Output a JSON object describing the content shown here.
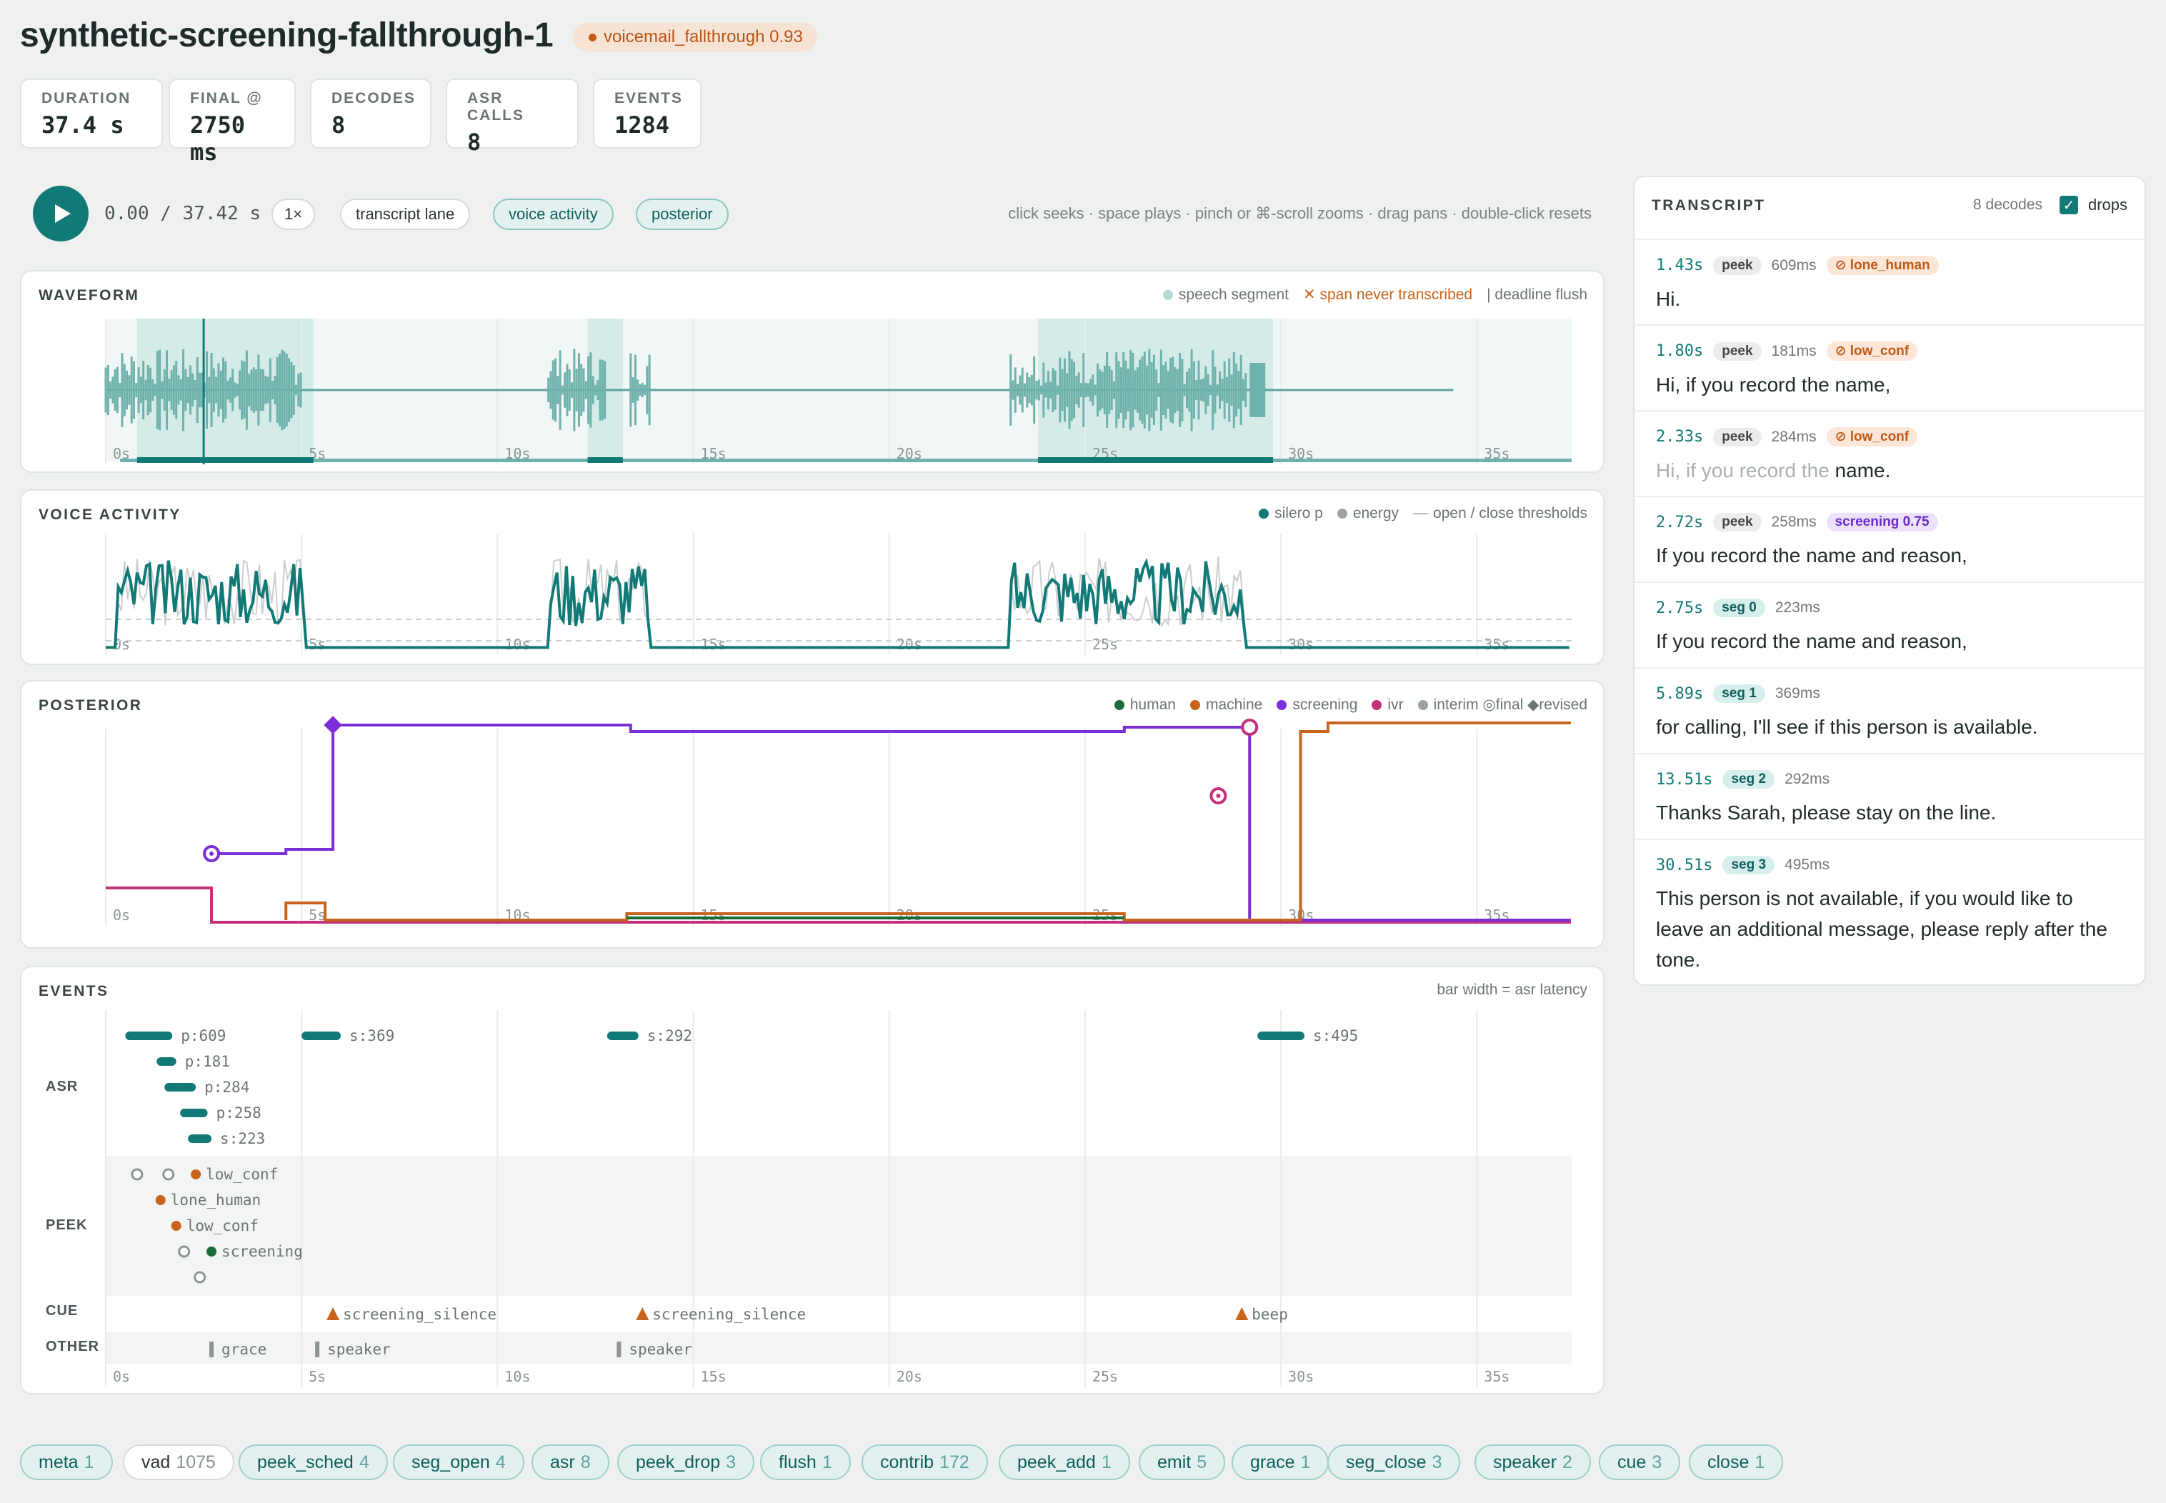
{
  "header": {
    "title": "synthetic-screening-fallthrough-1",
    "verdict": "voicemail_fallthrough 0.93"
  },
  "stats": [
    {
      "label": "DURATION",
      "value": "37.4 s"
    },
    {
      "label": "FINAL @",
      "value": "2750 ms"
    },
    {
      "label": "DECODES",
      "value": "8"
    },
    {
      "label": "ASR CALLS",
      "value": "8"
    },
    {
      "label": "EVENTS",
      "value": "1284"
    }
  ],
  "player": {
    "time": "0.00 / 37.42 s",
    "speed": "1×",
    "toggles": [
      "transcript lane",
      "voice activity",
      "posterior"
    ],
    "hint": "click seeks · space plays · pinch or ⌘-scroll zooms · drag pans · double-click resets"
  },
  "waveform": {
    "title": "WAVEFORM",
    "legend": {
      "speech": "speech segment",
      "never": "span never transcribed",
      "flush": "| deadline flush"
    }
  },
  "vad": {
    "title": "VOICE ACTIVITY",
    "legend": {
      "silero": "silero p",
      "energy": "energy",
      "thresholds": "open / close thresholds"
    }
  },
  "posterior": {
    "title": "POSTERIOR",
    "legend": {
      "human": "human",
      "machine": "machine",
      "screening": "screening",
      "ivr": "ivr",
      "interim": "interim",
      "final": "final",
      "revised": "revised"
    }
  },
  "events": {
    "title": "EVENTS",
    "legend": "bar width = asr latency",
    "lanes": {
      "asr": "ASR",
      "peek": "PEEK",
      "cue": "CUE",
      "other": "OTHER"
    },
    "asr": [
      {
        "t": 0.5,
        "w": 1.2,
        "label": "p:609",
        "row": 0
      },
      {
        "t": 5,
        "w": 1.0,
        "label": "s:369",
        "row": 0
      },
      {
        "t": 12.8,
        "w": 0.8,
        "label": "s:292",
        "row": 0
      },
      {
        "t": 29.4,
        "w": 1.2,
        "label": "s:495",
        "row": 0
      },
      {
        "t": 1.3,
        "w": 0.5,
        "label": "p:181",
        "row": 1
      },
      {
        "t": 1.5,
        "w": 0.8,
        "label": "p:284",
        "row": 2
      },
      {
        "t": 1.9,
        "w": 0.7,
        "label": "p:258",
        "row": 3
      },
      {
        "t": 2.1,
        "w": 0.6,
        "label": "s:223",
        "row": 4
      }
    ],
    "peek": [
      {
        "t": 0.8,
        "label": "",
        "row": 0,
        "style": "open"
      },
      {
        "t": 1.6,
        "label": "",
        "row": 0,
        "style": "open"
      },
      {
        "t": 2.3,
        "label": "low_conf",
        "row": 0,
        "style": "warn"
      },
      {
        "t": 1.4,
        "label": "lone_human",
        "row": 1,
        "style": "warn"
      },
      {
        "t": 1.8,
        "label": "low_conf",
        "row": 2,
        "style": "warn"
      },
      {
        "t": 2.0,
        "label": "",
        "row": 3,
        "style": "open"
      },
      {
        "t": 2.7,
        "label": "screening",
        "row": 3,
        "style": "good"
      },
      {
        "t": 2.4,
        "label": "",
        "row": 4,
        "style": "open"
      }
    ],
    "cue": [
      {
        "t": 5.8,
        "label": "screening_silence"
      },
      {
        "t": 13.7,
        "label": "screening_silence"
      },
      {
        "t": 29.0,
        "label": "beep"
      }
    ],
    "other": [
      {
        "t": 2.7,
        "label": "grace"
      },
      {
        "t": 5.4,
        "label": "speaker"
      },
      {
        "t": 13.1,
        "label": "speaker"
      }
    ]
  },
  "axis": {
    "ticks": [
      "0s",
      "5s",
      "10s",
      "15s",
      "20s",
      "25s",
      "30s",
      "35s"
    ],
    "max": 37.42
  },
  "transcript": {
    "title": "TRANSCRIPT",
    "count": "8 decodes",
    "drops_label": "drops",
    "rows": [
      {
        "time": "1.43s",
        "kind": "peek",
        "tag": "peek",
        "ms": "609ms",
        "badge": "⊘ lone_human",
        "badge_style": "warn",
        "text": "Hi.",
        "ghost": ""
      },
      {
        "time": "1.80s",
        "kind": "peek",
        "tag": "peek",
        "ms": "181ms",
        "badge": "⊘ low_conf",
        "badge_style": "warn",
        "text": "Hi, if you record the name,",
        "ghost": ""
      },
      {
        "time": "2.33s",
        "kind": "peek",
        "tag": "peek",
        "ms": "284ms",
        "badge": "⊘ low_conf",
        "badge_style": "warn",
        "text": "name.",
        "ghost": "Hi, if you record the "
      },
      {
        "time": "2.72s",
        "kind": "peek",
        "tag": "peek",
        "ms": "258ms",
        "badge": "screening 0.75",
        "badge_style": "scr",
        "text": "If you record the name and reason,",
        "ghost": ""
      },
      {
        "time": "2.75s",
        "kind": "seg",
        "tag": "seg 0",
        "ms": "223ms",
        "badge": "",
        "badge_style": "",
        "text": "If you record the name and reason,",
        "ghost": ""
      },
      {
        "time": "5.89s",
        "kind": "seg",
        "tag": "seg 1",
        "ms": "369ms",
        "badge": "",
        "badge_style": "",
        "text": "for calling, I'll see if this person is available.",
        "ghost": ""
      },
      {
        "time": "13.51s",
        "kind": "seg",
        "tag": "seg 2",
        "ms": "292ms",
        "badge": "",
        "badge_style": "",
        "text": "Thanks Sarah, please stay on the line.",
        "ghost": ""
      },
      {
        "time": "30.51s",
        "kind": "seg",
        "tag": "seg 3",
        "ms": "495ms",
        "badge": "",
        "badge_style": "",
        "text": "This person is not available, if you would like to leave an additional message, please reply after the tone.",
        "ghost": ""
      }
    ]
  },
  "filters": [
    {
      "name": "meta",
      "count": "1",
      "on": true
    },
    {
      "name": "vad",
      "count": "1075",
      "on": false
    },
    {
      "name": "peek_sched",
      "count": "4",
      "on": true
    },
    {
      "name": "seg_open",
      "count": "4",
      "on": true
    },
    {
      "name": "asr",
      "count": "8",
      "on": true
    },
    {
      "name": "peek_drop",
      "count": "3",
      "on": true
    },
    {
      "name": "flush",
      "count": "1",
      "on": true
    },
    {
      "name": "contrib",
      "count": "172",
      "on": true
    },
    {
      "name": "peek_add",
      "count": "1",
      "on": true
    },
    {
      "name": "emit",
      "count": "5",
      "on": true
    },
    {
      "name": "grace",
      "count": "1",
      "on": true
    },
    {
      "name": "seg_close",
      "count": "3",
      "on": true
    },
    {
      "name": "speaker",
      "count": "2",
      "on": true
    },
    {
      "name": "cue",
      "count": "3",
      "on": true
    },
    {
      "name": "close",
      "count": "1",
      "on": true
    }
  ],
  "colors": {
    "teal": "#117a76",
    "machine": "#c8641c",
    "screening": "#7a2fd8",
    "ivr": "#c4317a",
    "human": "#1a6a3a"
  }
}
